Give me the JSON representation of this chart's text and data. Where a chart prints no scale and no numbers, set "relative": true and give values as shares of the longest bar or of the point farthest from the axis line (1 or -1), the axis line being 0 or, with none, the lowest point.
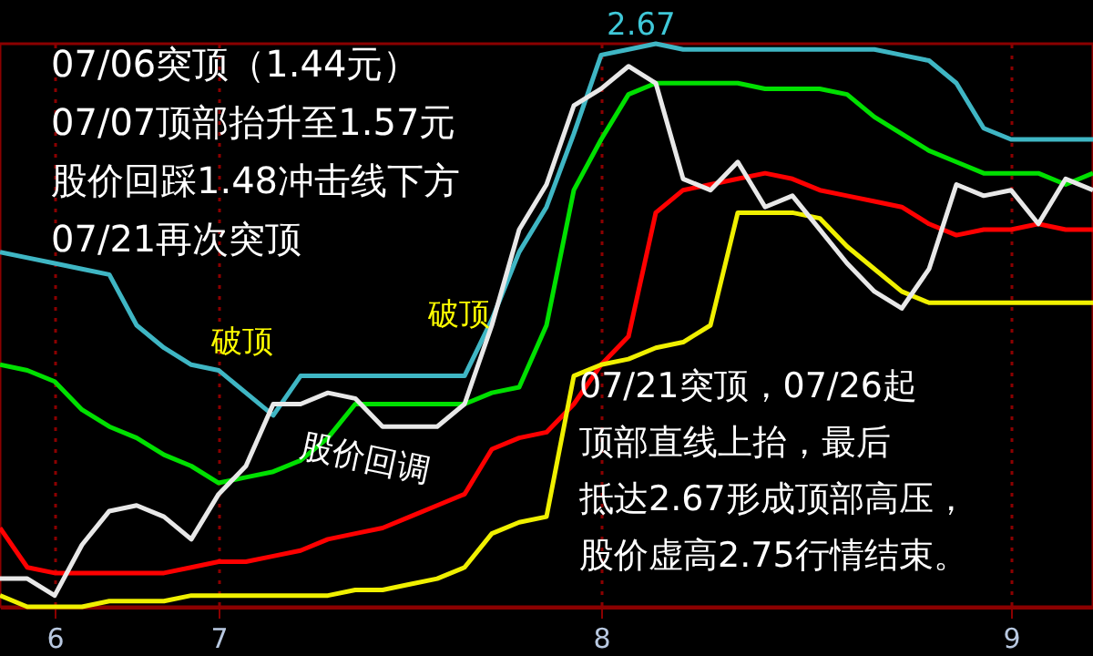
{
  "chart_data": {
    "type": "line",
    "relative": true,
    "grid": "x",
    "marker": "none",
    "line_style": "solid",
    "categories": [
      null,
      null,
      "6",
      null,
      null,
      null,
      null,
      null,
      "7",
      null,
      null,
      null,
      null,
      null,
      null,
      null,
      null,
      null,
      null,
      null,
      null,
      null,
      "8",
      null,
      null,
      null,
      null,
      null,
      null,
      null,
      null,
      null,
      null,
      null,
      null,
      null,
      null,
      "9",
      null,
      null,
      null
    ],
    "series": [
      {
        "color": "#3fb6c4",
        "values": [
          0.63,
          0.62,
          0.61,
          0.6,
          0.59,
          0.5,
          0.46,
          0.43,
          0.42,
          0.38,
          0.34,
          0.41,
          0.41,
          0.41,
          0.41,
          0.41,
          0.41,
          0.41,
          0.51,
          0.63,
          0.71,
          0.84,
          0.98,
          0.99,
          1.0,
          0.99,
          0.99,
          0.99,
          0.99,
          0.99,
          0.99,
          0.99,
          0.99,
          0.98,
          0.97,
          0.93,
          0.85,
          0.83,
          0.83,
          0.83,
          0.83
        ]
      },
      {
        "color": "#00e000",
        "values": [
          0.43,
          0.42,
          0.4,
          0.35,
          0.32,
          0.3,
          0.27,
          0.25,
          0.22,
          0.23,
          0.24,
          0.26,
          0.3,
          0.36,
          0.36,
          0.36,
          0.36,
          0.36,
          0.38,
          0.39,
          0.5,
          0.74,
          0.83,
          0.91,
          0.93,
          0.93,
          0.93,
          0.93,
          0.92,
          0.92,
          0.92,
          0.91,
          0.87,
          0.84,
          0.81,
          0.79,
          0.77,
          0.77,
          0.77,
          0.75,
          0.77
        ]
      },
      {
        "color": "#ff0000",
        "values": [
          0.14,
          0.07,
          0.06,
          0.06,
          0.06,
          0.06,
          0.06,
          0.07,
          0.08,
          0.08,
          0.09,
          0.1,
          0.12,
          0.13,
          0.14,
          0.16,
          0.18,
          0.2,
          0.28,
          0.3,
          0.31,
          0.36,
          0.43,
          0.48,
          0.7,
          0.74,
          0.75,
          0.76,
          0.77,
          0.76,
          0.74,
          0.73,
          0.72,
          0.71,
          0.68,
          0.66,
          0.67,
          0.67,
          0.68,
          0.67,
          0.67
        ]
      },
      {
        "color": "#f0f000",
        "values": [
          0.02,
          0.0,
          0.0,
          0.0,
          0.01,
          0.01,
          0.01,
          0.02,
          0.02,
          0.02,
          0.02,
          0.02,
          0.02,
          0.03,
          0.03,
          0.04,
          0.05,
          0.07,
          0.13,
          0.15,
          0.16,
          0.41,
          0.43,
          0.44,
          0.46,
          0.47,
          0.5,
          0.7,
          0.7,
          0.7,
          0.69,
          0.64,
          0.6,
          0.56,
          0.54,
          0.54,
          0.54,
          0.54,
          0.54,
          0.54,
          0.54
        ]
      },
      {
        "color": "#e8e8e8",
        "values": [
          0.05,
          0.05,
          0.02,
          0.11,
          0.17,
          0.18,
          0.16,
          0.12,
          0.2,
          0.25,
          0.36,
          0.36,
          0.38,
          0.37,
          0.32,
          0.32,
          0.32,
          0.36,
          0.5,
          0.67,
          0.75,
          0.89,
          0.92,
          0.96,
          0.93,
          0.76,
          0.74,
          0.79,
          0.71,
          0.73,
          0.67,
          0.61,
          0.56,
          0.53,
          0.6,
          0.75,
          0.73,
          0.74,
          0.68,
          0.76,
          0.74
        ]
      }
    ],
    "annotations": [
      "07/06突顶（1.44元）",
      "07/07顶部抬升至1.57元",
      "股价回踩1.48冲击线下方",
      "07/21再次突顶",
      "破顶",
      "破顶",
      "股价回调",
      "07/21突顶，07/26起",
      "顶部直线上抬，最后",
      "抵达2.67形成顶部高压，",
      "股价虚高2.75行情结束。",
      "2.67"
    ]
  }
}
